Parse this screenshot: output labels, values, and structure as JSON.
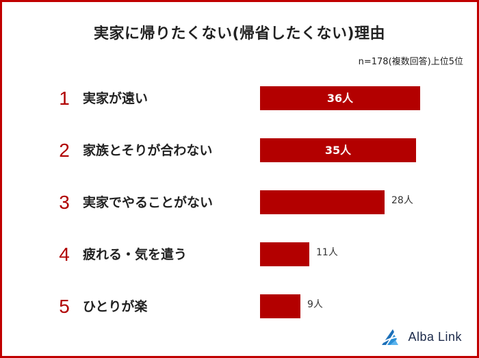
{
  "chart_data": {
    "type": "bar",
    "orientation": "horizontal",
    "title": "実家に帰りたくない(帰省したくない)理由",
    "note": "n=178(複数回答)上位5位",
    "unit": "人",
    "ranks": [
      "1",
      "2",
      "3",
      "4",
      "5"
    ],
    "categories": [
      "実家が遠い",
      "家族とそりが合わない",
      "実家でやることがない",
      "疲れる・気を遣う",
      "ひとりが楽"
    ],
    "values": [
      36,
      35,
      28,
      11,
      9
    ],
    "labels": [
      "36人",
      "35人",
      "28人",
      "11人",
      "9人"
    ],
    "xlim": [
      0,
      36
    ],
    "label_inside_for_ranks": [
      1,
      2
    ]
  },
  "brand": {
    "name": "Alba Link"
  },
  "colors": {
    "bar": "#b30000",
    "rank": "#b00000",
    "frame": "#c00000",
    "logo": "#2a8fd6"
  }
}
